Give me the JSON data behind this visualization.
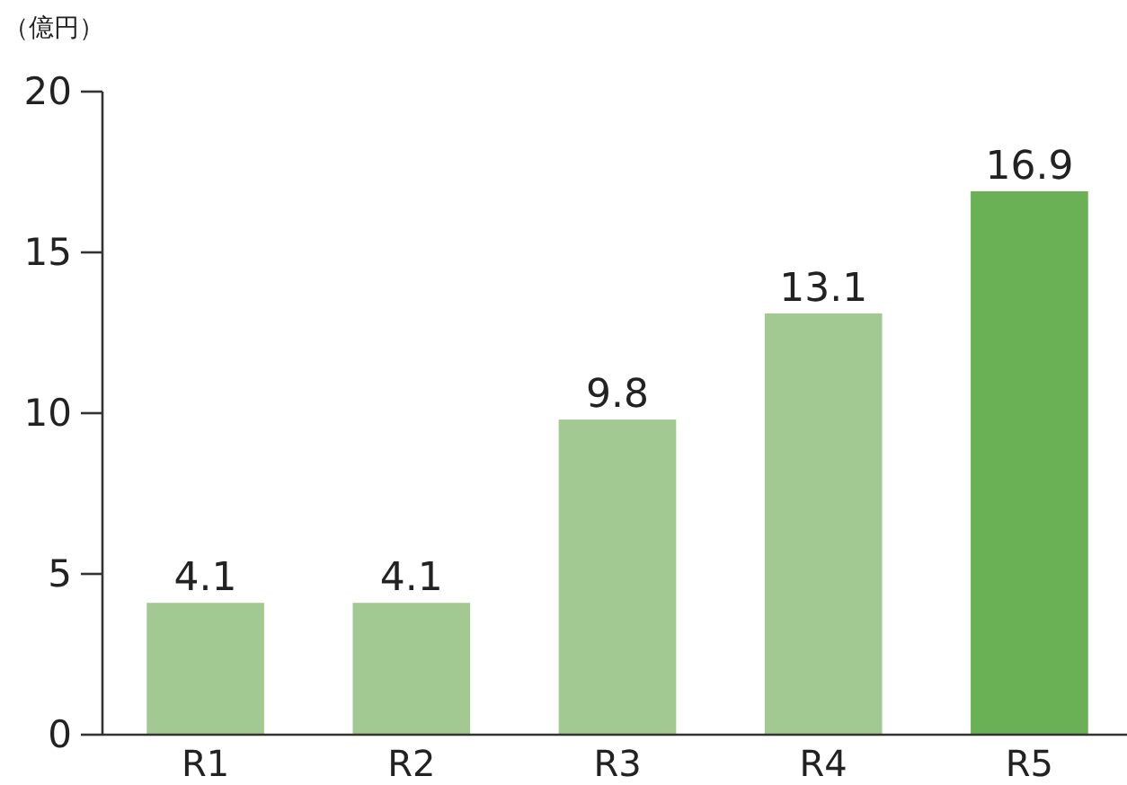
{
  "chart_data": {
    "type": "bar",
    "ylabel": "（億円）",
    "categories": [
      "R1",
      "R2",
      "R3",
      "R4",
      "R5"
    ],
    "values": [
      4.1,
      4.1,
      9.8,
      13.1,
      16.9
    ],
    "colors": [
      "#a3c993",
      "#a3c993",
      "#a3c993",
      "#a3c993",
      "#6ab155"
    ],
    "ylim": [
      0,
      20
    ],
    "yticks": [
      0,
      5,
      10,
      15,
      20
    ],
    "data_labels": true
  }
}
